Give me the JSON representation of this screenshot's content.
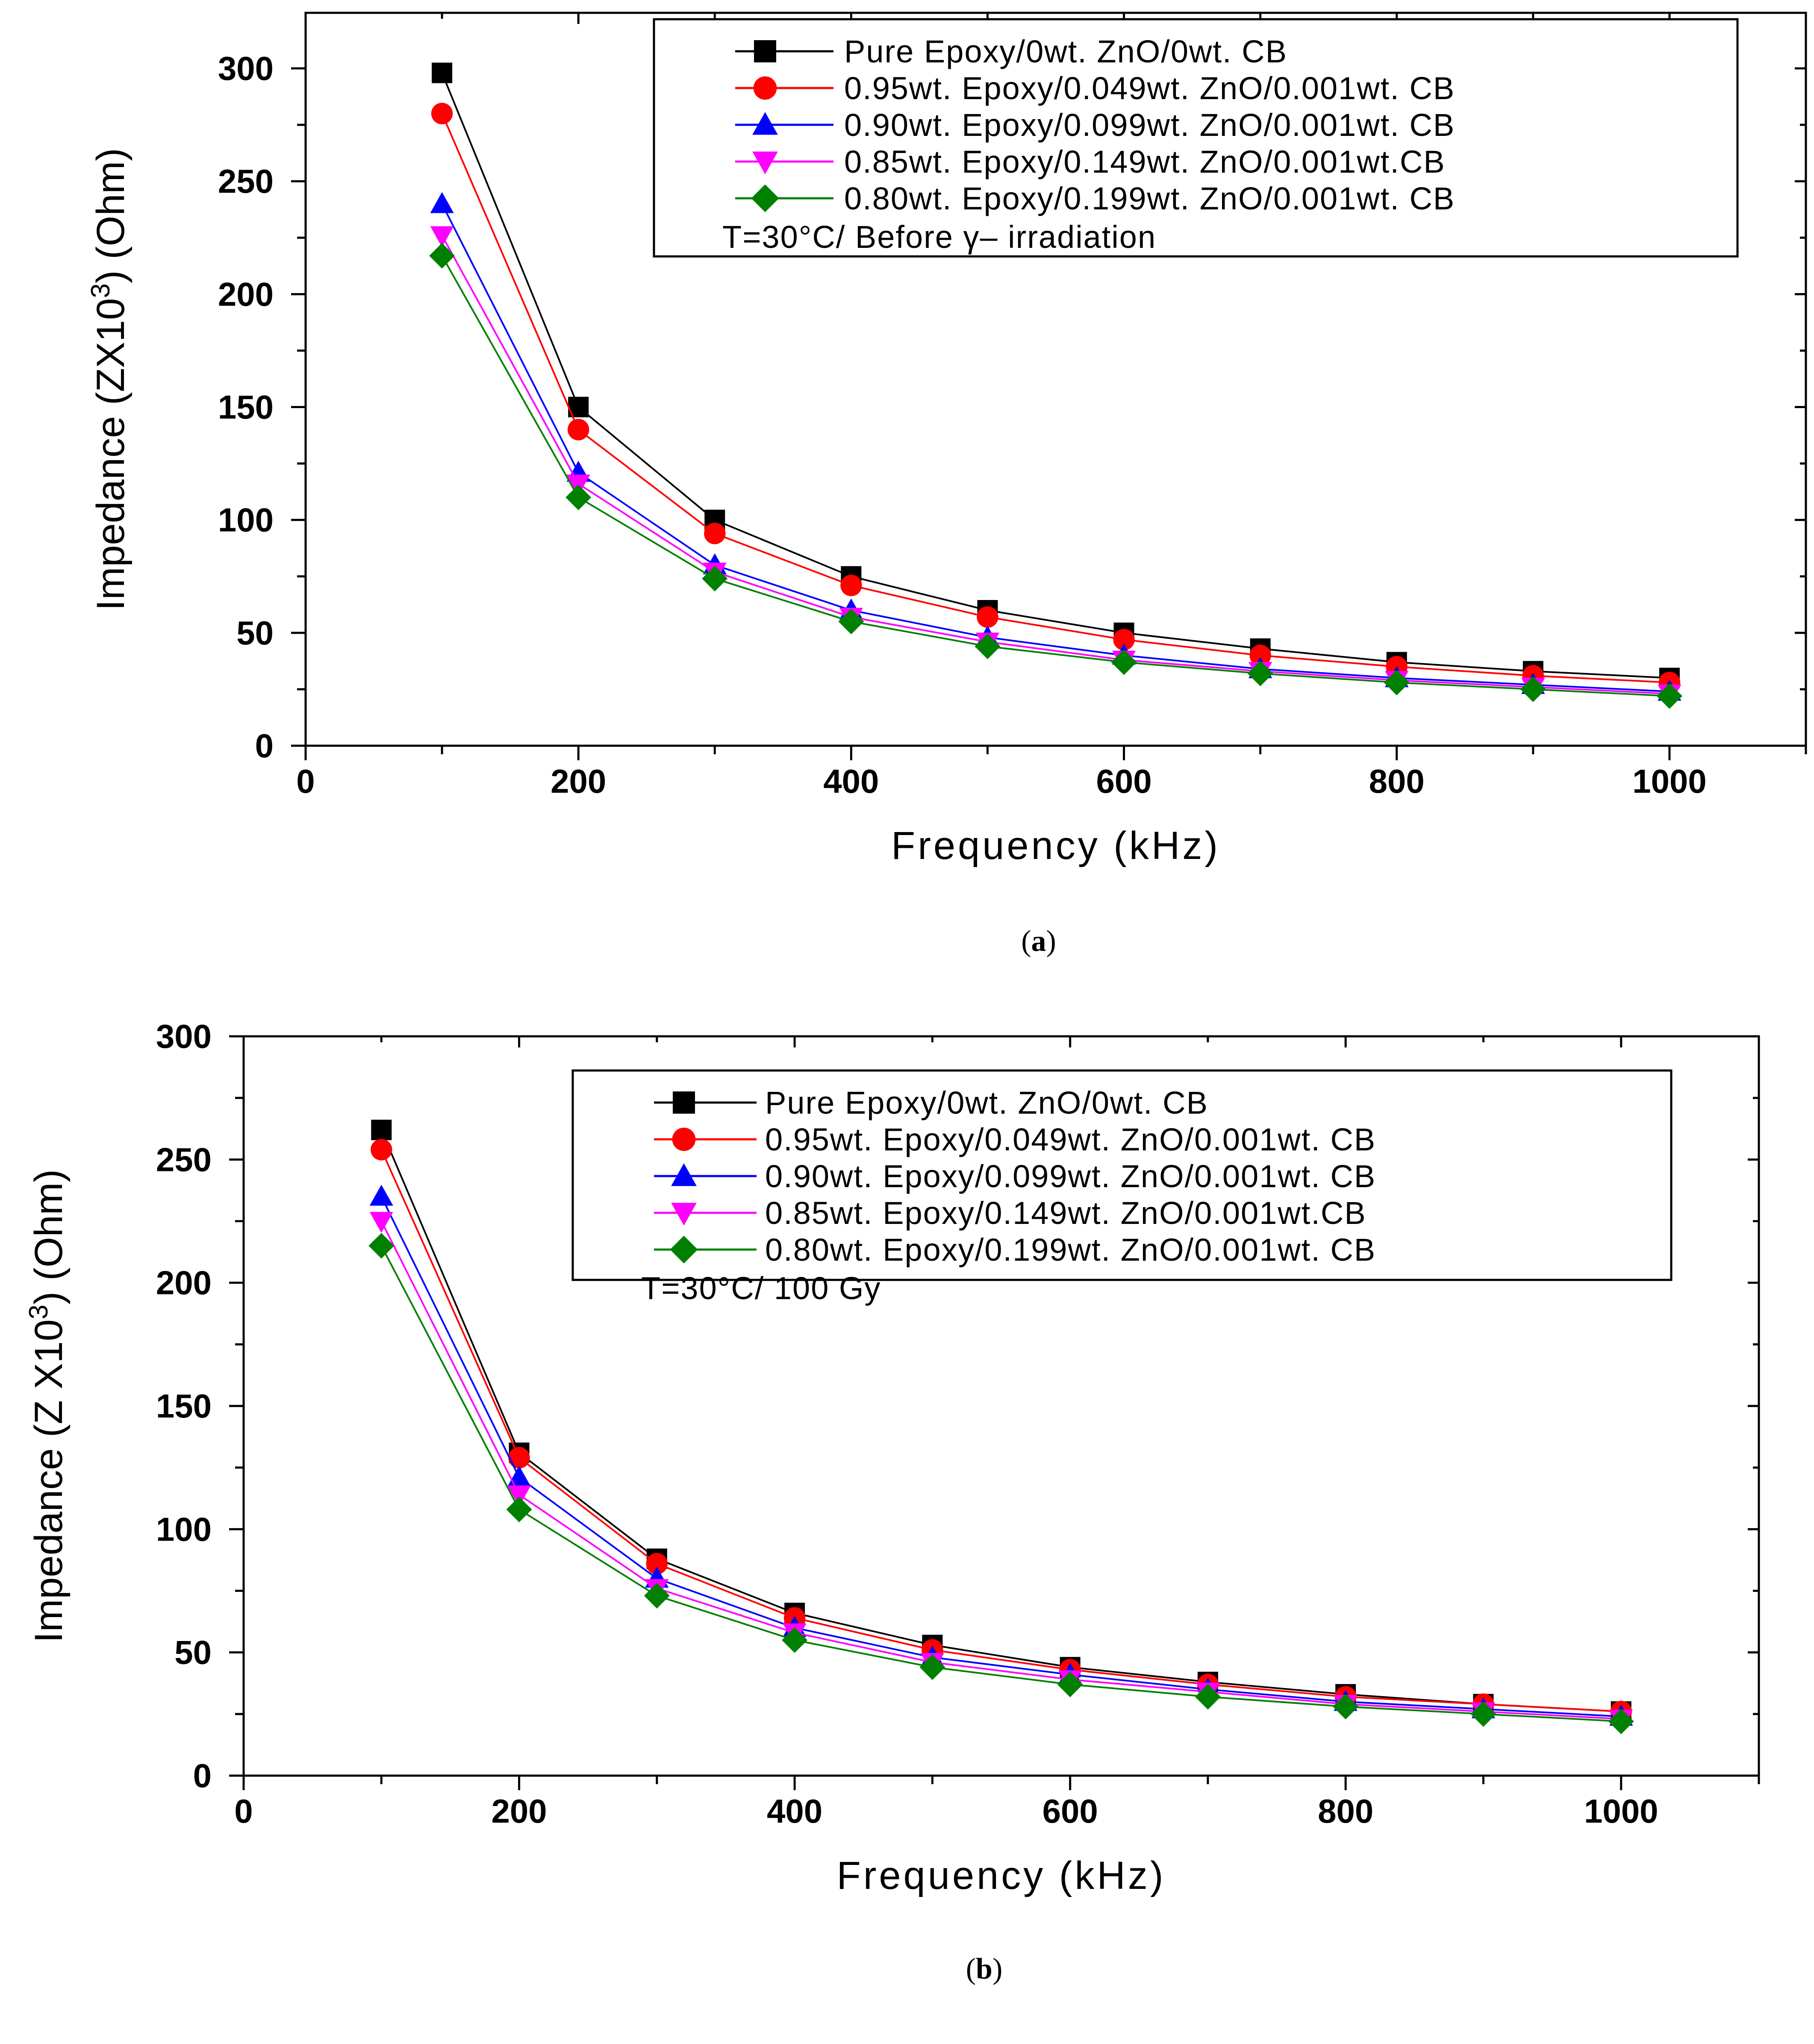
{
  "chart_data": [
    {
      "type": "line",
      "panel": "a",
      "caption": {
        "open": "(",
        "letter": "a",
        "close": ")"
      },
      "xlabel": "Frequency (kHz)",
      "ylabel": {
        "prefix": "Impedance (ZX10",
        "sup": "3",
        "suffix": ") (Ohm)"
      },
      "xlim": [
        0,
        1100
      ],
      "ylim": [
        0,
        320
      ],
      "xticks": [
        0,
        200,
        400,
        600,
        800,
        1000
      ],
      "yticks": [
        0,
        50,
        100,
        150,
        200,
        250,
        300
      ],
      "x": [
        100,
        200,
        300,
        400,
        500,
        600,
        700,
        800,
        900,
        1000
      ],
      "legend_note": "T=30°C/ Before γ– irradiation",
      "series": [
        {
          "name": "Pure  Epoxy/0wt. ZnO/0wt. CB",
          "color": "#000000",
          "marker": "square",
          "values": [
            298,
            150,
            100,
            75,
            60,
            50,
            43,
            37,
            33,
            30
          ]
        },
        {
          "name": "0.95wt. Epoxy/0.049wt. ZnO/0.001wt. CB",
          "color": "#ff0000",
          "marker": "circle",
          "values": [
            280,
            140,
            94,
            71,
            57,
            47,
            40,
            35,
            31,
            28
          ]
        },
        {
          "name": "0.90wt. Epoxy/0.099wt. ZnO/0.001wt. CB",
          "color": "#0000ff",
          "marker": "triangle-up",
          "values": [
            240,
            121,
            80,
            60,
            48,
            40,
            34,
            30,
            27,
            24
          ]
        },
        {
          "name": "0.85wt. Epoxy/0.149wt. ZnO/0.001wt.CB",
          "color": "#ff00ff",
          "marker": "triangle-down",
          "values": [
            226,
            116,
            77,
            57,
            46,
            38,
            33,
            29,
            26,
            23
          ]
        },
        {
          "name": "0.80wt. Epoxy/0.199wt. ZnO/0.001wt. CB",
          "color": "#008000",
          "marker": "diamond",
          "values": [
            217,
            110,
            74,
            55,
            44,
            37,
            32,
            28,
            25,
            22
          ]
        }
      ]
    },
    {
      "type": "line",
      "panel": "b",
      "caption": {
        "open": "(",
        "letter": "b",
        "close": ")"
      },
      "xlabel": "Frequency  (kHz)",
      "ylabel": {
        "prefix": "Impedance  (Z X10",
        "sup": "3",
        "suffix": ") (Ohm)"
      },
      "xlim": [
        0,
        1100
      ],
      "ylim": [
        0,
        300
      ],
      "xticks": [
        0,
        200,
        400,
        600,
        800,
        1000
      ],
      "yticks": [
        0,
        50,
        100,
        150,
        200,
        250,
        300
      ],
      "x": [
        100,
        200,
        300,
        400,
        500,
        600,
        700,
        800,
        900,
        1000
      ],
      "legend_note": "T=30°C/ 100 Gy",
      "series": [
        {
          "name": "Pure  Epoxy/0wt. ZnO/0wt. CB",
          "color": "#000000",
          "marker": "square",
          "values": [
            262,
            131,
            88,
            66,
            53,
            44,
            38,
            33,
            29,
            26
          ]
        },
        {
          "name": "0.95wt. Epoxy/0.049wt. ZnO/0.001wt. CB",
          "color": "#ff0000",
          "marker": "circle",
          "values": [
            254,
            129,
            86,
            64,
            51,
            43,
            37,
            32,
            29,
            26
          ]
        },
        {
          "name": "0.90wt. Epoxy/0.099wt. ZnO/0.001wt. CB",
          "color": "#0000ff",
          "marker": "triangle-up",
          "values": [
            235,
            121,
            80,
            60,
            48,
            41,
            35,
            30,
            27,
            24
          ]
        },
        {
          "name": "0.85wt. Epoxy/0.149wt. ZnO/0.001wt.CB",
          "color": "#ff00ff",
          "marker": "triangle-down",
          "values": [
            225,
            114,
            76,
            58,
            46,
            39,
            34,
            29,
            26,
            23
          ]
        },
        {
          "name": "0.80wt. Epoxy/0.199wt. ZnO/0.001wt. CB",
          "color": "#008000",
          "marker": "diamond",
          "values": [
            215,
            108,
            73,
            55,
            44,
            37,
            32,
            28,
            25,
            22
          ]
        }
      ]
    }
  ]
}
